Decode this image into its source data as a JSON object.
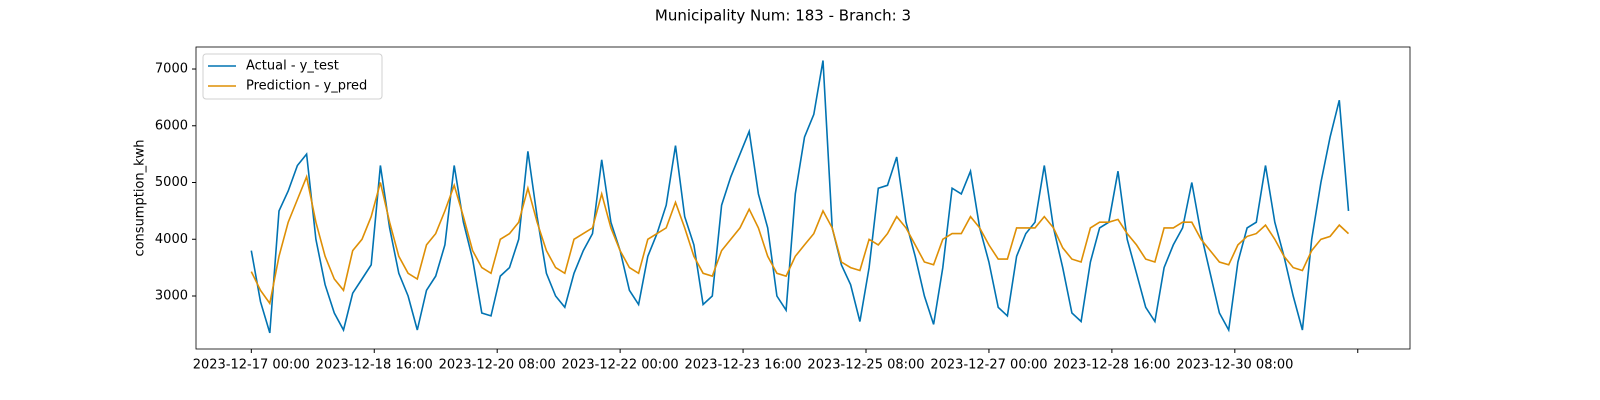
{
  "chart_data": {
    "type": "line",
    "title": "Municipality Num: 183 - Branch: 3",
    "ylabel": "consumption_kwh",
    "x": [
      "2023-12-17 00:00",
      "2023-12-17 03:00",
      "2023-12-17 06:00",
      "2023-12-17 09:00",
      "2023-12-17 12:00",
      "2023-12-17 15:00",
      "2023-12-17 18:00",
      "2023-12-17 21:00",
      "2023-12-18 00:00",
      "2023-12-18 03:00",
      "2023-12-18 06:00",
      "2023-12-18 09:00",
      "2023-12-18 12:00",
      "2023-12-18 15:00",
      "2023-12-18 18:00",
      "2023-12-18 21:00",
      "2023-12-19 00:00",
      "2023-12-19 03:00",
      "2023-12-19 06:00",
      "2023-12-19 09:00",
      "2023-12-19 12:00",
      "2023-12-19 15:00",
      "2023-12-19 18:00",
      "2023-12-19 21:00",
      "2023-12-20 00:00",
      "2023-12-20 03:00",
      "2023-12-20 06:00",
      "2023-12-20 09:00",
      "2023-12-20 12:00",
      "2023-12-20 15:00",
      "2023-12-20 18:00",
      "2023-12-20 21:00",
      "2023-12-21 00:00",
      "2023-12-21 03:00",
      "2023-12-21 06:00",
      "2023-12-21 09:00",
      "2023-12-21 12:00",
      "2023-12-21 15:00",
      "2023-12-21 18:00",
      "2023-12-21 21:00",
      "2023-12-22 00:00",
      "2023-12-22 03:00",
      "2023-12-22 06:00",
      "2023-12-22 09:00",
      "2023-12-22 12:00",
      "2023-12-22 15:00",
      "2023-12-22 18:00",
      "2023-12-22 21:00",
      "2023-12-23 00:00",
      "2023-12-23 03:00",
      "2023-12-23 06:00",
      "2023-12-23 09:00",
      "2023-12-23 12:00",
      "2023-12-23 15:00",
      "2023-12-23 18:00",
      "2023-12-23 21:00",
      "2023-12-24 00:00",
      "2023-12-24 03:00",
      "2023-12-24 06:00",
      "2023-12-24 09:00",
      "2023-12-24 12:00",
      "2023-12-24 15:00",
      "2023-12-24 18:00",
      "2023-12-24 21:00",
      "2023-12-25 00:00",
      "2023-12-25 03:00",
      "2023-12-25 06:00",
      "2023-12-25 09:00",
      "2023-12-25 12:00",
      "2023-12-25 15:00",
      "2023-12-25 18:00",
      "2023-12-25 21:00",
      "2023-12-26 00:00",
      "2023-12-26 03:00",
      "2023-12-26 06:00",
      "2023-12-26 09:00",
      "2023-12-26 12:00",
      "2023-12-26 15:00",
      "2023-12-26 18:00",
      "2023-12-26 21:00",
      "2023-12-27 00:00",
      "2023-12-27 03:00",
      "2023-12-27 06:00",
      "2023-12-27 09:00",
      "2023-12-27 12:00",
      "2023-12-27 15:00",
      "2023-12-27 18:00",
      "2023-12-27 21:00",
      "2023-12-28 00:00",
      "2023-12-28 03:00",
      "2023-12-28 06:00",
      "2023-12-28 09:00",
      "2023-12-28 12:00",
      "2023-12-28 15:00",
      "2023-12-28 18:00",
      "2023-12-28 21:00",
      "2023-12-29 00:00",
      "2023-12-29 03:00",
      "2023-12-29 06:00",
      "2023-12-29 09:00",
      "2023-12-29 12:00",
      "2023-12-29 15:00",
      "2023-12-29 18:00",
      "2023-12-29 21:00",
      "2023-12-30 00:00",
      "2023-12-30 03:00",
      "2023-12-30 06:00",
      "2023-12-30 09:00",
      "2023-12-30 12:00",
      "2023-12-30 15:00",
      "2023-12-30 18:00",
      "2023-12-30 21:00",
      "2023-12-31 00:00",
      "2023-12-31 03:00",
      "2023-12-31 06:00",
      "2023-12-31 09:00",
      "2023-12-31 12:00",
      "2023-12-31 15:00",
      "2023-12-31 18:00",
      "2023-12-31 21:00"
    ],
    "series": [
      {
        "name": "Actual - y_test",
        "color": "#0173b2",
        "values": [
          3800,
          2900,
          2350,
          4500,
          4850,
          5300,
          5500,
          4000,
          3200,
          2700,
          2400,
          3050,
          3300,
          3550,
          5300,
          4200,
          3400,
          3000,
          2400,
          3100,
          3350,
          3900,
          5300,
          4300,
          3650,
          2700,
          2650,
          3350,
          3500,
          4000,
          5550,
          4400,
          3400,
          3000,
          2800,
          3400,
          3800,
          4100,
          5400,
          4300,
          3800,
          3100,
          2850,
          3700,
          4100,
          4600,
          5650,
          4400,
          3900,
          2850,
          3000,
          4600,
          5100,
          5500,
          5900,
          4800,
          4200,
          3000,
          2750,
          4800,
          5800,
          6200,
          7150,
          4200,
          3550,
          3200,
          2550,
          3500,
          4900,
          4950,
          5450,
          4300,
          3700,
          3000,
          2500,
          3500,
          4900,
          4800,
          5200,
          4200,
          3600,
          2800,
          2650,
          3700,
          4100,
          4300,
          5300,
          4200,
          3500,
          2700,
          2550,
          3600,
          4200,
          4300,
          5200,
          4000,
          3400,
          2800,
          2550,
          3500,
          3900,
          4200,
          5000,
          4100,
          3400,
          2700,
          2400,
          3600,
          4200,
          4300,
          5300,
          4300,
          3700,
          3000,
          2400,
          4000,
          5000,
          5800,
          6450,
          4500
        ]
      },
      {
        "name": "Prediction - y_pred",
        "color": "#de8f05",
        "values": [
          3430,
          3100,
          2870,
          3700,
          4300,
          4700,
          5100,
          4300,
          3700,
          3300,
          3100,
          3800,
          4000,
          4400,
          5000,
          4300,
          3700,
          3400,
          3300,
          3900,
          4100,
          4500,
          4950,
          4400,
          3800,
          3500,
          3400,
          4000,
          4100,
          4300,
          4900,
          4300,
          3800,
          3500,
          3400,
          4000,
          4100,
          4200,
          4800,
          4200,
          3800,
          3500,
          3400,
          4000,
          4100,
          4200,
          4650,
          4200,
          3700,
          3400,
          3350,
          3800,
          4000,
          4200,
          4530,
          4200,
          3700,
          3400,
          3350,
          3700,
          3900,
          4100,
          4500,
          4200,
          3600,
          3500,
          3450,
          4000,
          3900,
          4100,
          4400,
          4200,
          3900,
          3600,
          3550,
          4000,
          4100,
          4100,
          4400,
          4200,
          3900,
          3650,
          3650,
          4200,
          4200,
          4200,
          4400,
          4200,
          3850,
          3650,
          3600,
          4200,
          4300,
          4300,
          4350,
          4100,
          3900,
          3650,
          3600,
          4200,
          4200,
          4300,
          4300,
          4000,
          3800,
          3600,
          3550,
          3900,
          4050,
          4100,
          4250,
          4000,
          3700,
          3500,
          3450,
          3800,
          4000,
          4050,
          4250,
          4100
        ]
      }
    ],
    "xlim": [
      "2023-12-16 06:00",
      "2024-01-01 17:00"
    ],
    "xticks": [
      {
        "value": "2023-12-17 00:00",
        "label": "2023-12-17 00:00"
      },
      {
        "value": "2023-12-18 16:00",
        "label": "2023-12-18 16:00"
      },
      {
        "value": "2023-12-20 08:00",
        "label": "2023-12-20 08:00"
      },
      {
        "value": "2023-12-22 00:00",
        "label": "2023-12-22 00:00"
      },
      {
        "value": "2023-12-23 16:00",
        "label": "2023-12-23 16:00"
      },
      {
        "value": "2023-12-25 08:00",
        "label": "2023-12-25 08:00"
      },
      {
        "value": "2023-12-27 00:00",
        "label": "2023-12-27 00:00"
      },
      {
        "value": "2023-12-28 16:00",
        "label": "2023-12-28 16:00"
      },
      {
        "value": "2023-12-30 08:00",
        "label": "2023-12-30 08:00"
      },
      {
        "value": "2024-01-01 00:00",
        "label": null
      }
    ],
    "ylim": [
      2066,
      7388
    ],
    "yticks": [
      3000,
      4000,
      5000,
      6000,
      7000
    ],
    "legend": "upper left"
  }
}
